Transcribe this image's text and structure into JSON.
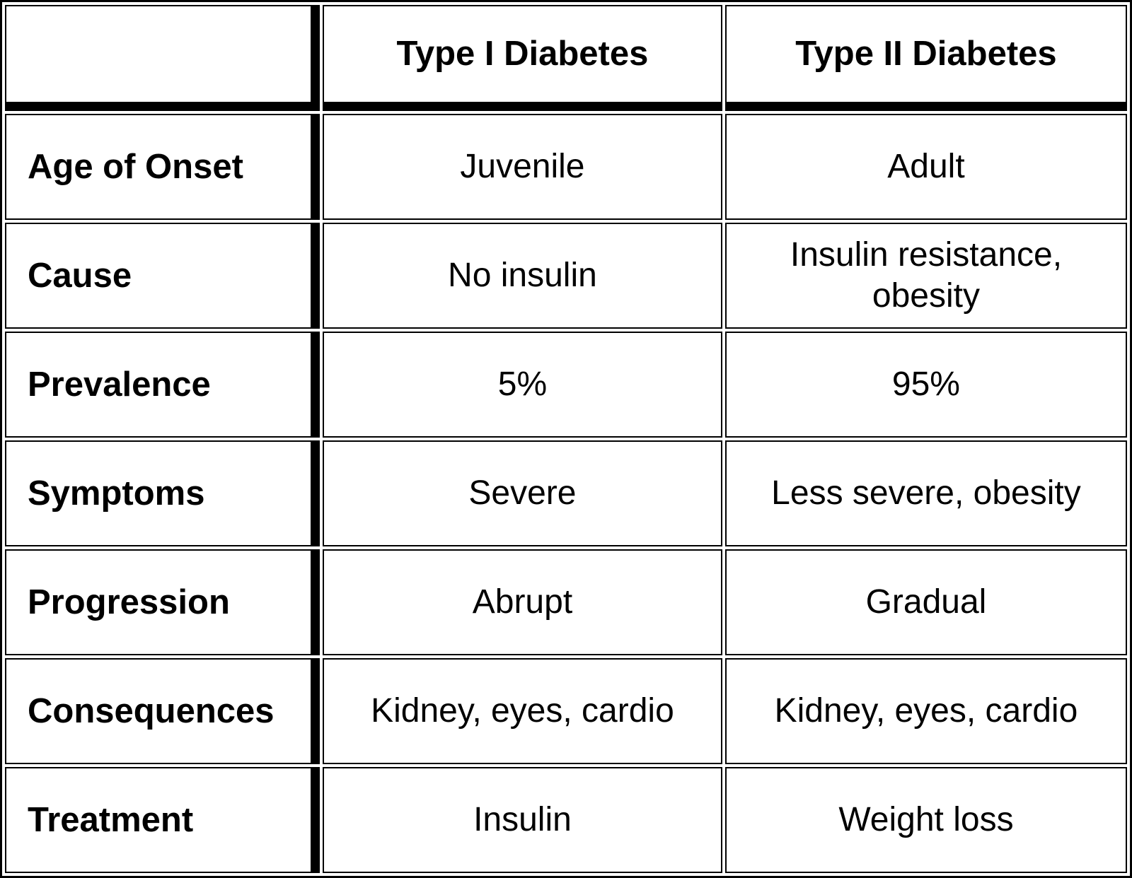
{
  "table": {
    "header": {
      "corner": "",
      "col1": "Type I Diabetes",
      "col2": "Type II Diabetes"
    },
    "rows": [
      {
        "label": "Age of Onset",
        "type1": "Juvenile",
        "type2": "Adult"
      },
      {
        "label": "Cause",
        "type1": "No insulin",
        "type2": "Insulin resistance, obesity"
      },
      {
        "label": "Prevalence",
        "type1": "5%",
        "type2": "95%"
      },
      {
        "label": "Symptoms",
        "type1": "Severe",
        "type2": "Less severe, obesity"
      },
      {
        "label": "Progression",
        "type1": "Abrupt",
        "type2": "Gradual"
      },
      {
        "label": "Consequences",
        "type1": "Kidney, eyes, cardio",
        "type2": "Kidney, eyes, cardio"
      },
      {
        "label": "Treatment",
        "type1": "Insulin",
        "type2": "Weight loss"
      }
    ]
  },
  "colors": {
    "border": "#000000",
    "background": "#ffffff",
    "text": "#000000"
  },
  "chart_data": {
    "type": "table",
    "title": "",
    "columns": [
      "",
      "Type I Diabetes",
      "Type II Diabetes"
    ],
    "rows": [
      [
        "Age of Onset",
        "Juvenile",
        "Adult"
      ],
      [
        "Cause",
        "No insulin",
        "Insulin resistance, obesity"
      ],
      [
        "Prevalence",
        "5%",
        "95%"
      ],
      [
        "Symptoms",
        "Severe",
        "Less severe, obesity"
      ],
      [
        "Progression",
        "Abrupt",
        "Gradual"
      ],
      [
        "Consequences",
        "Kidney, eyes, cardio",
        "Kidney, eyes, cardio"
      ],
      [
        "Treatment",
        "Insulin",
        "Weight loss"
      ]
    ],
    "layout": {
      "grid": true,
      "thick_divider_after_first_column": true,
      "thick_divider_below_header_row": true
    }
  }
}
